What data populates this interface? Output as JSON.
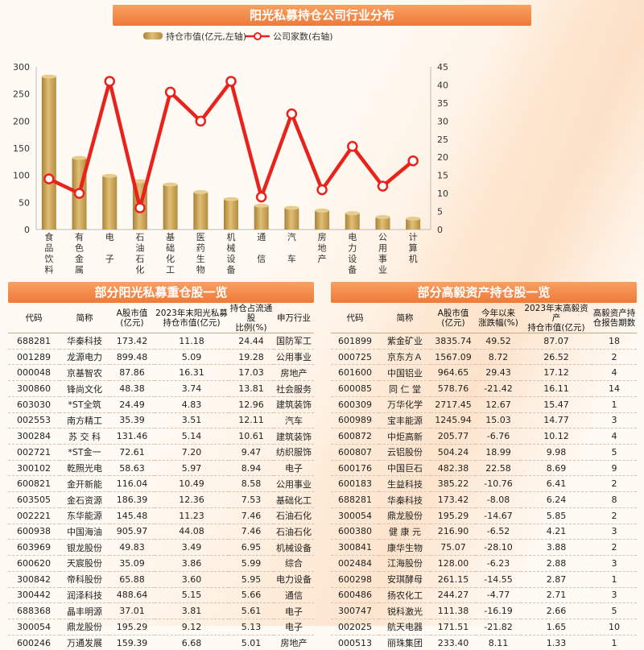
{
  "chart_title": "阳光私募持仓公司行业分布",
  "chart_data": {
    "type": "bar",
    "title": "阳光私募持仓公司行业分布",
    "categories": [
      "食品饮料",
      "有色金属",
      "电子",
      "石油石化",
      "基础化工",
      "医药生物",
      "机械设备",
      "通信",
      "汽车",
      "房地产",
      "电力设备",
      "公用事业",
      "计算机"
    ],
    "category_labels": [
      [
        "食",
        "品",
        "饮",
        "料"
      ],
      [
        "有",
        "色",
        "金",
        "属"
      ],
      [
        "电",
        "",
        "子",
        ""
      ],
      [
        "石",
        "油",
        "石",
        "化"
      ],
      [
        "基",
        "础",
        "化",
        "工"
      ],
      [
        "医",
        "药",
        "生",
        "物"
      ],
      [
        "机",
        "械",
        "设",
        "备"
      ],
      [
        "通",
        "",
        "信",
        ""
      ],
      [
        "汽",
        "",
        "车",
        ""
      ],
      [
        "房",
        "地",
        "产",
        ""
      ],
      [
        "电",
        "力",
        "设",
        "备"
      ],
      [
        "公",
        "用",
        "事",
        "业"
      ],
      [
        "计",
        "算",
        "机",
        ""
      ]
    ],
    "series": [
      {
        "name": "持仓市值(亿元,左轴)",
        "type": "bar",
        "axis": "left",
        "color": "#c9a24e",
        "values": [
          282,
          132,
          99,
          89,
          83,
          69,
          56,
          44,
          40,
          35,
          30,
          23,
          20
        ]
      },
      {
        "name": "公司家数(右轴)",
        "type": "line",
        "axis": "right",
        "color": "#e8231c",
        "values": [
          14,
          10,
          41,
          6,
          38,
          30,
          41,
          9,
          32,
          11,
          23,
          12,
          19
        ]
      }
    ],
    "ylim_left": [
      0,
      300
    ],
    "yticks_left": [
      0,
      50,
      100,
      150,
      200,
      250,
      300
    ],
    "ylim_right": [
      0,
      45
    ],
    "yticks_right": [
      0,
      5,
      10,
      15,
      20,
      25,
      30,
      35,
      40,
      45
    ],
    "legend_position": "top-center",
    "grid": false
  },
  "left_table": {
    "title": "部分阳光私募重仓股一览",
    "headers": [
      "代码",
      "简称",
      "A股市值\n(亿元)",
      "2023年末阳光私募\n持仓市值(亿元)",
      "持仓占流通股\n比例(%)",
      "申万行业"
    ],
    "rows": [
      [
        "688281",
        "华秦科技",
        "173.42",
        "11.18",
        "24.44",
        "国防军工"
      ],
      [
        "001289",
        "龙源电力",
        "899.48",
        "5.09",
        "19.28",
        "公用事业"
      ],
      [
        "000048",
        "京基智农",
        "87.86",
        "16.31",
        "17.03",
        "房地产"
      ],
      [
        "300860",
        "锋尚文化",
        "48.38",
        "3.74",
        "13.81",
        "社会服务"
      ],
      [
        "603030",
        "*ST全筑",
        "24.49",
        "4.83",
        "12.96",
        "建筑装饰"
      ],
      [
        "002553",
        "南方精工",
        "35.39",
        "3.51",
        "12.11",
        "汽车"
      ],
      [
        "300284",
        "苏 交 科",
        "131.46",
        "5.14",
        "10.61",
        "建筑装饰"
      ],
      [
        "002721",
        "*ST金一",
        "72.61",
        "7.20",
        "9.47",
        "纺织服饰"
      ],
      [
        "300102",
        "乾照光电",
        "58.63",
        "5.97",
        "8.94",
        "电子"
      ],
      [
        "600821",
        "金开新能",
        "116.04",
        "10.49",
        "8.58",
        "公用事业"
      ],
      [
        "603505",
        "金石资源",
        "186.39",
        "12.36",
        "7.53",
        "基础化工"
      ],
      [
        "002221",
        "东华能源",
        "145.48",
        "11.23",
        "7.46",
        "石油石化"
      ],
      [
        "600938",
        "中国海油",
        "905.97",
        "44.08",
        "7.46",
        "石油石化"
      ],
      [
        "603969",
        "银龙股份",
        "49.83",
        "3.49",
        "6.95",
        "机械设备"
      ],
      [
        "600620",
        "天宸股份",
        "35.09",
        "3.86",
        "5.99",
        "综合"
      ],
      [
        "300842",
        "帝科股份",
        "65.88",
        "3.60",
        "5.95",
        "电力设备"
      ],
      [
        "300442",
        "润泽科技",
        "488.64",
        "5.15",
        "5.66",
        "通信"
      ],
      [
        "688368",
        "晶丰明源",
        "37.01",
        "3.81",
        "5.61",
        "电子"
      ],
      [
        "300054",
        "鼎龙股份",
        "195.29",
        "9.12",
        "5.13",
        "电子"
      ],
      [
        "600246",
        "万通发展",
        "159.39",
        "6.68",
        "5.01",
        "房地产"
      ]
    ]
  },
  "right_table": {
    "title": "部分高毅资产持仓股一览",
    "headers": [
      "代码",
      "简称",
      "A股市值\n(亿元)",
      "今年以来\n涨跌幅(%)",
      "2023年末高毅资产\n持仓市值(亿元)",
      "高毅资产持\n仓报告期数"
    ],
    "rows": [
      [
        "601899",
        "紫金矿业",
        "3835.74",
        "49.52",
        "87.07",
        "18"
      ],
      [
        "000725",
        "京东方Ａ",
        "1567.09",
        "8.72",
        "26.52",
        "2"
      ],
      [
        "601600",
        "中国铝业",
        "964.65",
        "29.43",
        "17.12",
        "4"
      ],
      [
        "600085",
        "同 仁 堂",
        "578.76",
        "-21.42",
        "16.11",
        "14"
      ],
      [
        "600309",
        "万华化学",
        "2717.45",
        "12.67",
        "15.47",
        "1"
      ],
      [
        "600989",
        "宝丰能源",
        "1245.94",
        "15.03",
        "14.77",
        "3"
      ],
      [
        "600872",
        "中炬高新",
        "205.77",
        "-6.76",
        "10.12",
        "4"
      ],
      [
        "600807",
        "云铝股份",
        "504.24",
        "18.99",
        "9.98",
        "5"
      ],
      [
        "600176",
        "中国巨石",
        "482.38",
        "22.58",
        "8.69",
        "9"
      ],
      [
        "600183",
        "生益科技",
        "385.22",
        "-10.76",
        "6.41",
        "2"
      ],
      [
        "688281",
        "华秦科技",
        "173.42",
        "-8.08",
        "6.24",
        "8"
      ],
      [
        "300054",
        "鼎龙股份",
        "195.29",
        "-14.67",
        "5.85",
        "2"
      ],
      [
        "600380",
        "健 康 元",
        "216.90",
        "-6.52",
        "4.21",
        "3"
      ],
      [
        "300841",
        "康华生物",
        "75.07",
        "-28.10",
        "3.88",
        "2"
      ],
      [
        "002484",
        "江海股份",
        "128.00",
        "-6.23",
        "2.88",
        "3"
      ],
      [
        "600298",
        "安琪酵母",
        "261.15",
        "-14.55",
        "2.87",
        "1"
      ],
      [
        "600486",
        "扬农化工",
        "244.27",
        "-4.77",
        "2.71",
        "3"
      ],
      [
        "300747",
        "锐科激光",
        "111.38",
        "-16.19",
        "2.66",
        "5"
      ],
      [
        "002025",
        "航天电器",
        "171.51",
        "-21.82",
        "1.65",
        "10"
      ],
      [
        "000513",
        "丽珠集团",
        "233.40",
        "8.11",
        "1.33",
        "1"
      ]
    ]
  }
}
